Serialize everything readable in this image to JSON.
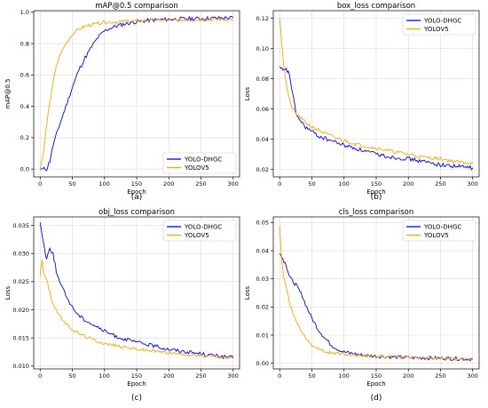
{
  "chart_data": [
    {
      "type": "line",
      "panel": "a",
      "caption": "(a)",
      "title": "mAP@0.5 comparison",
      "xlabel": "Epoch",
      "ylabel": "mAP@0.5",
      "xlim": [
        -10,
        310
      ],
      "ylim": [
        -0.05,
        1.01
      ],
      "xticks": [
        0,
        50,
        100,
        150,
        200,
        250,
        300
      ],
      "yticks": [
        0.0,
        0.2,
        0.4,
        0.6,
        0.8,
        1.0
      ],
      "yticklabels": [
        "0.0",
        "0.2",
        "0.4",
        "0.6",
        "0.8",
        "1.0"
      ],
      "grid": true,
      "legend": "bottom-right",
      "series": [
        {
          "name": "YOLO-DHGC",
          "color": "#0000ee",
          "x": [
            0,
            10,
            15,
            20,
            30,
            40,
            50,
            60,
            70,
            80,
            90,
            100,
            110,
            125,
            150,
            175,
            200,
            250,
            300
          ],
          "y": [
            0.0,
            0.0,
            0.05,
            0.15,
            0.28,
            0.4,
            0.52,
            0.63,
            0.71,
            0.78,
            0.84,
            0.88,
            0.9,
            0.92,
            0.94,
            0.95,
            0.955,
            0.96,
            0.965
          ]
        },
        {
          "name": "YOLOV5",
          "color": "#f5a800",
          "x": [
            0,
            5,
            10,
            15,
            20,
            25,
            30,
            40,
            50,
            60,
            70,
            80,
            100,
            125,
            150,
            200,
            250,
            300
          ],
          "y": [
            0.0,
            0.1,
            0.28,
            0.42,
            0.55,
            0.65,
            0.72,
            0.8,
            0.86,
            0.89,
            0.91,
            0.92,
            0.935,
            0.94,
            0.945,
            0.95,
            0.952,
            0.955
          ]
        }
      ]
    },
    {
      "type": "line",
      "panel": "b",
      "caption": "(b)",
      "title": "box_loss comparison",
      "xlabel": "Epoch",
      "ylabel": "Loss",
      "xlim": [
        -10,
        310
      ],
      "ylim": [
        0.015,
        0.125
      ],
      "xticks": [
        0,
        50,
        100,
        150,
        200,
        250,
        300
      ],
      "yticks": [
        0.02,
        0.04,
        0.06,
        0.08,
        0.1,
        0.12
      ],
      "yticklabels": [
        "0.02",
        "0.04",
        "0.06",
        "0.08",
        "0.10",
        "0.12"
      ],
      "grid": true,
      "legend": "top-right",
      "series": [
        {
          "name": "YOLO-DHGC",
          "color": "#0000ee",
          "x": [
            0,
            5,
            10,
            15,
            20,
            25,
            30,
            40,
            50,
            60,
            80,
            100,
            125,
            150,
            175,
            200,
            225,
            250,
            275,
            300
          ],
          "y": [
            0.088,
            0.085,
            0.086,
            0.083,
            0.07,
            0.058,
            0.053,
            0.048,
            0.045,
            0.042,
            0.039,
            0.036,
            0.033,
            0.03,
            0.028,
            0.027,
            0.025,
            0.023,
            0.022,
            0.021
          ]
        },
        {
          "name": "YOLOV5",
          "color": "#f5a800",
          "x": [
            0,
            3,
            6,
            10,
            15,
            20,
            25,
            30,
            40,
            50,
            60,
            80,
            100,
            125,
            150,
            175,
            200,
            225,
            250,
            275,
            300
          ],
          "y": [
            0.12,
            0.105,
            0.09,
            0.077,
            0.066,
            0.06,
            0.057,
            0.055,
            0.051,
            0.048,
            0.046,
            0.042,
            0.039,
            0.036,
            0.034,
            0.032,
            0.03,
            0.028,
            0.027,
            0.025,
            0.024
          ]
        }
      ]
    },
    {
      "type": "line",
      "panel": "c",
      "caption": "(c)",
      "title": "obj_loss comparison",
      "xlabel": "Epoch",
      "ylabel": "Loss",
      "xlim": [
        -10,
        310
      ],
      "ylim": [
        0.0095,
        0.0365
      ],
      "xticks": [
        0,
        50,
        100,
        150,
        200,
        250,
        300
      ],
      "yticks": [
        0.01,
        0.015,
        0.02,
        0.025,
        0.03,
        0.035
      ],
      "yticklabels": [
        "0.010",
        "0.015",
        "0.020",
        "0.025",
        "0.030",
        "0.035"
      ],
      "grid": true,
      "legend": "top-right",
      "series": [
        {
          "name": "YOLO-DHGC",
          "color": "#0000ee",
          "x": [
            0,
            5,
            10,
            15,
            20,
            25,
            30,
            40,
            50,
            60,
            70,
            80,
            100,
            120,
            140,
            160,
            180,
            200,
            225,
            250,
            275,
            300
          ],
          "y": [
            0.0355,
            0.032,
            0.029,
            0.031,
            0.03,
            0.027,
            0.025,
            0.0225,
            0.0205,
            0.019,
            0.0182,
            0.0175,
            0.0162,
            0.0152,
            0.0145,
            0.014,
            0.0135,
            0.013,
            0.0126,
            0.0122,
            0.0118,
            0.0115
          ]
        },
        {
          "name": "YOLOV5",
          "color": "#f5a800",
          "x": [
            0,
            3,
            6,
            10,
            15,
            20,
            30,
            40,
            50,
            60,
            80,
            100,
            125,
            150,
            175,
            200,
            225,
            250,
            275,
            300
          ],
          "y": [
            0.026,
            0.029,
            0.026,
            0.0255,
            0.023,
            0.021,
            0.019,
            0.0175,
            0.0165,
            0.0158,
            0.0148,
            0.014,
            0.0135,
            0.013,
            0.0127,
            0.0124,
            0.0121,
            0.0118,
            0.0116,
            0.0114
          ]
        }
      ]
    },
    {
      "type": "line",
      "panel": "d",
      "caption": "(d)",
      "title": "cls_loss comparison",
      "xlabel": "Epoch",
      "ylabel": "Loss",
      "xlim": [
        -10,
        310
      ],
      "ylim": [
        -0.002,
        0.052
      ],
      "xticks": [
        0,
        50,
        100,
        150,
        200,
        250,
        300
      ],
      "yticks": [
        0.0,
        0.01,
        0.02,
        0.03,
        0.04,
        0.05
      ],
      "yticklabels": [
        "0.00",
        "0.01",
        "0.02",
        "0.03",
        "0.04",
        "0.05"
      ],
      "grid": true,
      "legend": "top-right",
      "series": [
        {
          "name": "YOLO-DHGC",
          "color": "#0000ee",
          "x": [
            0,
            5,
            10,
            15,
            20,
            25,
            30,
            35,
            40,
            50,
            60,
            70,
            80,
            90,
            100,
            125,
            150,
            200,
            250,
            300
          ],
          "y": [
            0.039,
            0.037,
            0.035,
            0.031,
            0.029,
            0.028,
            0.026,
            0.024,
            0.021,
            0.016,
            0.012,
            0.009,
            0.0065,
            0.005,
            0.004,
            0.003,
            0.0025,
            0.002,
            0.0018,
            0.0015
          ]
        },
        {
          "name": "YOLOV5",
          "color": "#f5a800",
          "x": [
            0,
            3,
            6,
            10,
            15,
            20,
            30,
            40,
            50,
            60,
            70,
            80,
            100,
            125,
            150,
            200,
            250,
            300
          ],
          "y": [
            0.049,
            0.036,
            0.031,
            0.027,
            0.022,
            0.018,
            0.013,
            0.009,
            0.0065,
            0.005,
            0.0042,
            0.0037,
            0.0032,
            0.0028,
            0.0025,
            0.002,
            0.0017,
            0.0014
          ]
        }
      ]
    }
  ]
}
